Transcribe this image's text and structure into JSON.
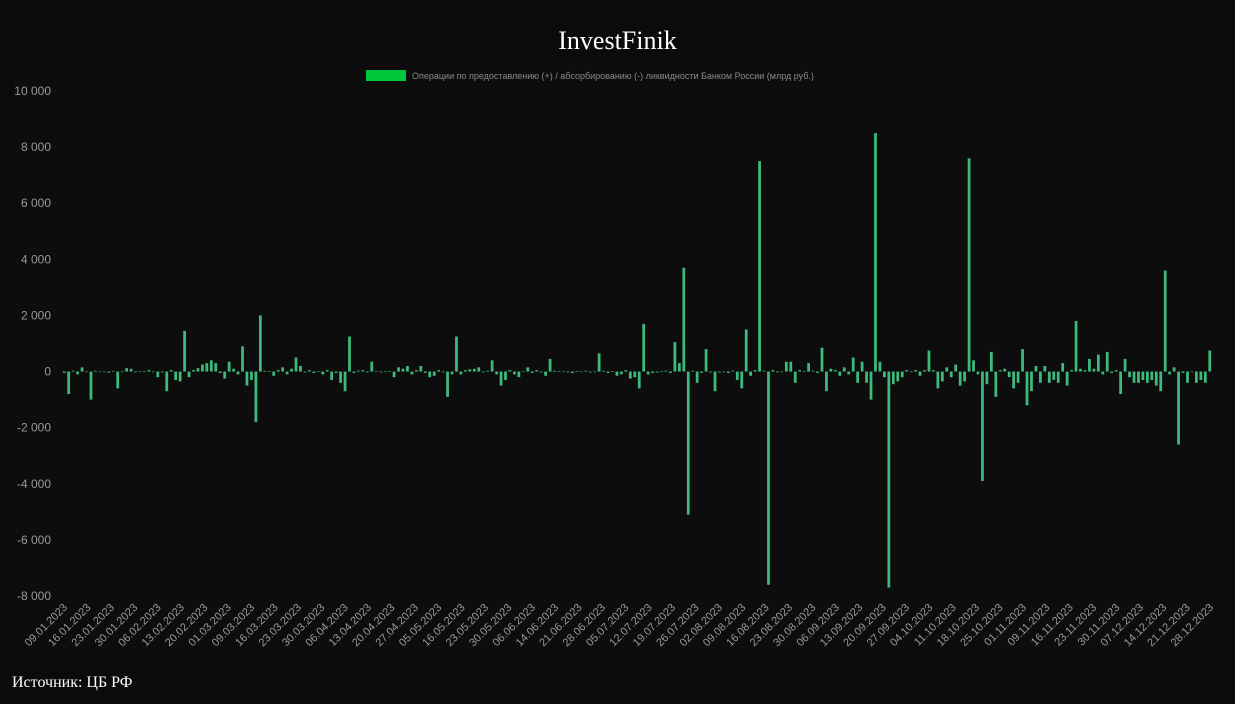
{
  "header": {
    "title": "InvestFinik"
  },
  "footer": {
    "source": "Источник: ЦБ РФ"
  },
  "chart_data": {
    "type": "bar",
    "legend": {
      "label": "Операции по предоставлению (+) / абсорбированию (-) ликвидности Банком России (млрд руб.)",
      "position": "top-center",
      "color": "#00c73c"
    },
    "bar_color": "#3dbb7c",
    "ylim": [
      -8000,
      10000
    ],
    "yticks": [
      10000,
      8000,
      6000,
      4000,
      2000,
      0,
      -2000,
      -4000,
      -6000,
      -8000
    ],
    "ytick_labels": [
      "10 000",
      "8 000",
      "6 000",
      "4 000",
      "2 000",
      "0",
      "-2 000",
      "-4 000",
      "-6 000",
      "-8 000"
    ],
    "x_tick_labels": [
      "09.01.2023",
      "16.01.2023",
      "23.01.2023",
      "30.01.2023",
      "06.02.2023",
      "13.02.2023",
      "20.02.2023",
      "01.03.2023",
      "09.03.2023",
      "16.03.2023",
      "23.03.2023",
      "30.03.2023",
      "06.04.2023",
      "13.04.2023",
      "20.04.2023",
      "27.04.2023",
      "05.05.2023",
      "16.05.2023",
      "23.05.2023",
      "30.05.2023",
      "06.06.2023",
      "14.06.2023",
      "21.06.2023",
      "28.06.2023",
      "05.07.2023",
      "12.07.2023",
      "19.07.2023",
      "26.07.2023",
      "02.08.2023",
      "09.08.2023",
      "16.08.2023",
      "23.08.2023",
      "30.08.2023",
      "06.09.2023",
      "13.09.2023",
      "20.09.2023",
      "27.09.2023",
      "04.10.2023",
      "11.10.2023",
      "18.10.2023",
      "25.10.2023",
      "01.11.2023",
      "09.11.2023",
      "16.11.2023",
      "23.11.2023",
      "30.11.2023",
      "07.12.2023",
      "14.12.2023",
      "21.12.2023",
      "28.12.2023"
    ],
    "values": [
      -50,
      -800,
      30,
      -100,
      150,
      -20,
      -1000,
      30,
      -20,
      -10,
      -40,
      20,
      -600,
      20,
      120,
      100,
      -30,
      20,
      20,
      50,
      -10,
      -200,
      -30,
      -700,
      50,
      -300,
      -350,
      1450,
      -200,
      50,
      120,
      250,
      300,
      400,
      300,
      -50,
      -250,
      350,
      100,
      -100,
      900,
      -500,
      -300,
      -1800,
      2000,
      30,
      20,
      -150,
      50,
      150,
      -100,
      100,
      500,
      200,
      -30,
      50,
      -50,
      20,
      -100,
      50,
      -300,
      -50,
      -400,
      -700,
      1250,
      -50,
      30,
      50,
      -30,
      350,
      20,
      -30,
      -10,
      20,
      -200,
      150,
      100,
      200,
      -100,
      50,
      200,
      -50,
      -200,
      -150,
      50,
      -30,
      -900,
      -100,
      1250,
      -100,
      50,
      80,
      100,
      150,
      -30,
      30,
      400,
      -100,
      -500,
      -300,
      50,
      -100,
      -200,
      20,
      150,
      -50,
      50,
      -30,
      -150,
      450,
      30,
      20,
      10,
      -30,
      -50,
      10,
      -20,
      30,
      -30,
      -20,
      650,
      30,
      -50,
      20,
      -150,
      -100,
      50,
      -250,
      -200,
      -600,
      1700,
      -100,
      -50,
      -30,
      20,
      30,
      -50,
      1050,
      300,
      3700,
      -5100,
      30,
      -400,
      -50,
      800,
      -30,
      -700,
      -30,
      -20,
      -50,
      30,
      -300,
      -600,
      1500,
      -150,
      50,
      7500,
      30,
      -7600,
      50,
      -30,
      -20,
      350,
      350,
      -400,
      50,
      20,
      300,
      30,
      -50,
      850,
      -700,
      100,
      50,
      -150,
      150,
      -100,
      500,
      -400,
      350,
      -400,
      -1000,
      8500,
      350,
      -200,
      -7700,
      -450,
      -350,
      -200,
      50,
      -20,
      50,
      -150,
      50,
      750,
      50,
      -600,
      -350,
      150,
      -200,
      250,
      -500,
      -350,
      7600,
      400,
      -100,
      -3900,
      -450,
      700,
      -900,
      50,
      100,
      -200,
      -600,
      -400,
      800,
      -1200,
      -700,
      200,
      -400,
      200,
      -400,
      -300,
      -400,
      300,
      -500,
      50,
      1800,
      100,
      50,
      450,
      100,
      600,
      -100,
      700,
      -50,
      50,
      -800,
      450,
      -200,
      -400,
      -400,
      -300,
      -400,
      -300,
      -500,
      -700,
      3600,
      -100,
      150,
      -2600,
      -50,
      -400,
      -20,
      -400,
      -300,
      -400,
      750
    ]
  }
}
